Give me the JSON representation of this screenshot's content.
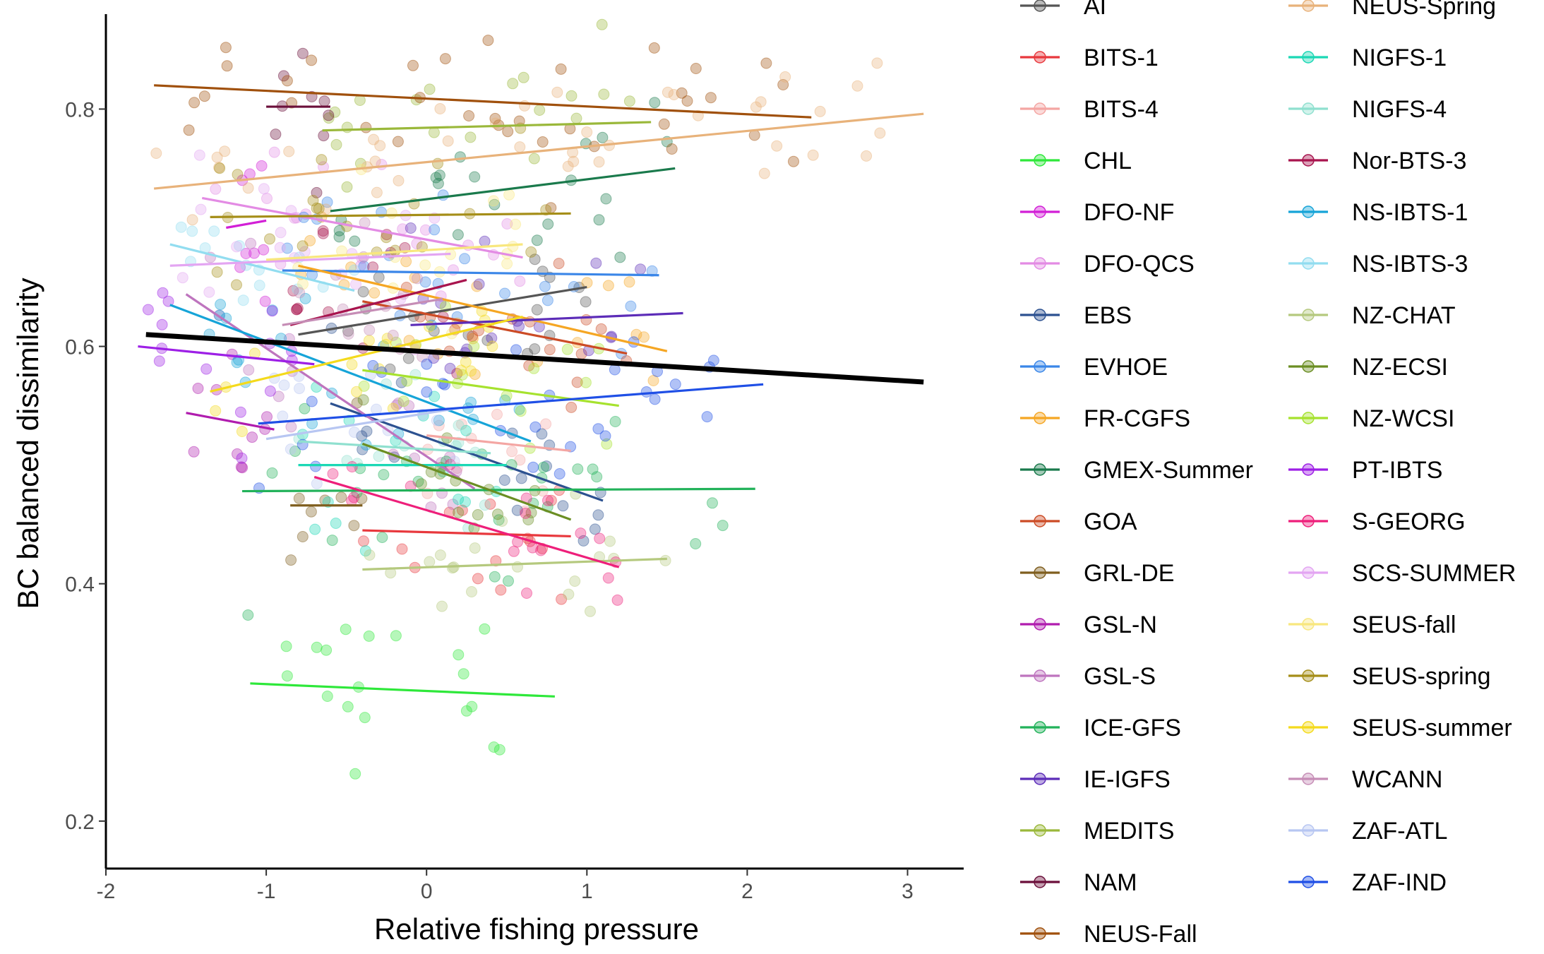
{
  "chart_data": {
    "type": "scatter",
    "title": "",
    "xlabel": "Relative fishing pressure",
    "ylabel": "BC balanced dissimilarity",
    "xlim": [
      -2.0,
      3.35
    ],
    "ylim": [
      0.16,
      0.88
    ],
    "x_ticks": [
      -2,
      -1,
      0,
      1,
      2,
      3
    ],
    "x_tick_labels": [
      "-2",
      "-1",
      "0",
      "1",
      "2",
      "3"
    ],
    "y_ticks": [
      0.2,
      0.4,
      0.6,
      0.8
    ],
    "y_tick_labels": [
      "0.2",
      "0.4",
      "0.6",
      "0.8"
    ],
    "grid": false,
    "legend_position": "right",
    "overall_trend": {
      "color": "#000000",
      "x": [
        -1.75,
        3.1
      ],
      "y": [
        0.61,
        0.57
      ]
    },
    "series": [
      {
        "name": "AI",
        "color": "#555555",
        "trend": {
          "x": [
            -0.8,
            1.0
          ],
          "y": [
            0.61,
            0.65
          ]
        }
      },
      {
        "name": "BITS-1",
        "color": "#E8383D",
        "trend": {
          "x": [
            -0.4,
            0.9
          ],
          "y": [
            0.445,
            0.44
          ]
        }
      },
      {
        "name": "BITS-4",
        "color": "#F4A6A3",
        "trend": {
          "x": [
            0.0,
            0.9
          ],
          "y": [
            0.525,
            0.512
          ]
        }
      },
      {
        "name": "CHL",
        "color": "#2EE83A",
        "trend": {
          "x": [
            -1.1,
            0.8
          ],
          "y": [
            0.316,
            0.305
          ]
        }
      },
      {
        "name": "DFO-NF",
        "color": "#D21FD6",
        "trend": {
          "x": [
            -1.25,
            -1.0
          ],
          "y": [
            0.7,
            0.706
          ]
        }
      },
      {
        "name": "DFO-QCS",
        "color": "#E38BE4",
        "trend": {
          "x": [
            -1.4,
            0.6
          ],
          "y": [
            0.725,
            0.675
          ]
        }
      },
      {
        "name": "EBS",
        "color": "#2C5190",
        "trend": {
          "x": [
            -0.6,
            1.1
          ],
          "y": [
            0.552,
            0.47
          ]
        }
      },
      {
        "name": "EVHOE",
        "color": "#3A86E8",
        "trend": {
          "x": [
            -0.9,
            1.45
          ],
          "y": [
            0.664,
            0.66
          ]
        }
      },
      {
        "name": "FR-CGFS",
        "color": "#F5A623",
        "trend": {
          "x": [
            -0.8,
            1.5
          ],
          "y": [
            0.668,
            0.596
          ]
        }
      },
      {
        "name": "GMEX-Summer",
        "color": "#1A7A4C",
        "trend": {
          "x": [
            -0.6,
            1.55
          ],
          "y": [
            0.714,
            0.75
          ]
        }
      },
      {
        "name": "GOA",
        "color": "#CC4B25",
        "trend": {
          "x": [
            -0.4,
            1.25
          ],
          "y": [
            0.638,
            0.594
          ]
        }
      },
      {
        "name": "GRL-DE",
        "color": "#7F5E1E",
        "trend": {
          "x": [
            -0.85,
            -0.4
          ],
          "y": [
            0.466,
            0.466
          ]
        }
      },
      {
        "name": "GSL-N",
        "color": "#B01CAE",
        "trend": {
          "x": [
            -1.5,
            -0.95
          ],
          "y": [
            0.544,
            0.53
          ]
        }
      },
      {
        "name": "GSL-S",
        "color": "#BE74BE",
        "trend": {
          "x": [
            -1.5,
            0.3
          ],
          "y": [
            0.644,
            0.48
          ]
        }
      },
      {
        "name": "ICE-GFS",
        "color": "#22B25A",
        "trend": {
          "x": [
            -1.15,
            2.05
          ],
          "y": [
            0.478,
            0.48
          ]
        }
      },
      {
        "name": "IE-IGFS",
        "color": "#5C2CB8",
        "trend": {
          "x": [
            -0.1,
            1.6
          ],
          "y": [
            0.618,
            0.628
          ]
        }
      },
      {
        "name": "MEDITS",
        "color": "#9AB83A",
        "trend": {
          "x": [
            -0.65,
            1.4
          ],
          "y": [
            0.782,
            0.789
          ]
        }
      },
      {
        "name": "NAM",
        "color": "#6B0F3A",
        "trend": {
          "x": [
            -1.0,
            -0.6
          ],
          "y": [
            0.802,
            0.802
          ]
        }
      },
      {
        "name": "NEUS-Fall",
        "color": "#A0500C",
        "trend": {
          "x": [
            -1.7,
            2.4
          ],
          "y": [
            0.82,
            0.793
          ]
        }
      },
      {
        "name": "NEUS-Spring",
        "color": "#E8B27A",
        "trend": {
          "x": [
            -1.7,
            3.1
          ],
          "y": [
            0.733,
            0.796
          ]
        }
      },
      {
        "name": "NIGFS-1",
        "color": "#1BD8B5",
        "trend": {
          "x": [
            -0.8,
            0.5
          ],
          "y": [
            0.5,
            0.5
          ]
        }
      },
      {
        "name": "NIGFS-4",
        "color": "#8FE0CF",
        "trend": {
          "x": [
            -0.8,
            0.4
          ],
          "y": [
            0.52,
            0.51
          ]
        }
      },
      {
        "name": "Nor-BTS-3",
        "color": "#A8144E",
        "trend": {
          "x": [
            -0.85,
            0.25
          ],
          "y": [
            0.618,
            0.656
          ]
        }
      },
      {
        "name": "NS-IBTS-1",
        "color": "#16A4D8",
        "trend": {
          "x": [
            -1.6,
            0.65
          ],
          "y": [
            0.635,
            0.52
          ]
        }
      },
      {
        "name": "NS-IBTS-3",
        "color": "#92DDF0",
        "trend": {
          "x": [
            -1.6,
            -0.45
          ],
          "y": [
            0.686,
            0.647
          ]
        }
      },
      {
        "name": "NZ-CHAT",
        "color": "#B5C97E",
        "trend": {
          "x": [
            -0.4,
            1.5
          ],
          "y": [
            0.412,
            0.421
          ]
        }
      },
      {
        "name": "NZ-ECSI",
        "color": "#6B8E23",
        "trend": {
          "x": [
            -0.4,
            0.9
          ],
          "y": [
            0.518,
            0.454
          ]
        }
      },
      {
        "name": "NZ-WCSI",
        "color": "#A6E22E",
        "trend": {
          "x": [
            -0.4,
            1.2
          ],
          "y": [
            0.58,
            0.55
          ]
        }
      },
      {
        "name": "PT-IBTS",
        "color": "#9D1FE6",
        "trend": {
          "x": [
            -1.8,
            -0.7
          ],
          "y": [
            0.6,
            0.585
          ]
        }
      },
      {
        "name": "S-GEORG",
        "color": "#EE1F7A",
        "trend": {
          "x": [
            -0.7,
            1.2
          ],
          "y": [
            0.49,
            0.414
          ]
        }
      },
      {
        "name": "SCS-SUMMER",
        "color": "#E3A5F2",
        "trend": {
          "x": [
            -1.6,
            0.15
          ],
          "y": [
            0.668,
            0.678
          ]
        }
      },
      {
        "name": "SEUS-fall",
        "color": "#F8E77E",
        "trend": {
          "x": [
            -1.0,
            0.6
          ],
          "y": [
            0.673,
            0.686
          ]
        }
      },
      {
        "name": "SEUS-spring",
        "color": "#A58E18",
        "trend": {
          "x": [
            -1.35,
            0.9
          ],
          "y": [
            0.709,
            0.712
          ]
        }
      },
      {
        "name": "SEUS-summer",
        "color": "#F4DA1C",
        "trend": {
          "x": [
            -1.35,
            0.6
          ],
          "y": [
            0.562,
            0.625
          ]
        }
      },
      {
        "name": "WCANN",
        "color": "#C68DB6",
        "trend": {
          "x": [
            -0.9,
            0.1
          ],
          "y": [
            0.618,
            0.64
          ]
        }
      },
      {
        "name": "ZAF-ATL",
        "color": "#B7C6F2",
        "trend": {
          "x": [
            -1.0,
            0.2
          ],
          "y": [
            0.522,
            0.548
          ]
        }
      },
      {
        "name": "ZAF-IND",
        "color": "#1F4FE6",
        "trend": {
          "x": [
            -1.05,
            2.1
          ],
          "y": [
            0.535,
            0.568
          ]
        }
      }
    ]
  }
}
